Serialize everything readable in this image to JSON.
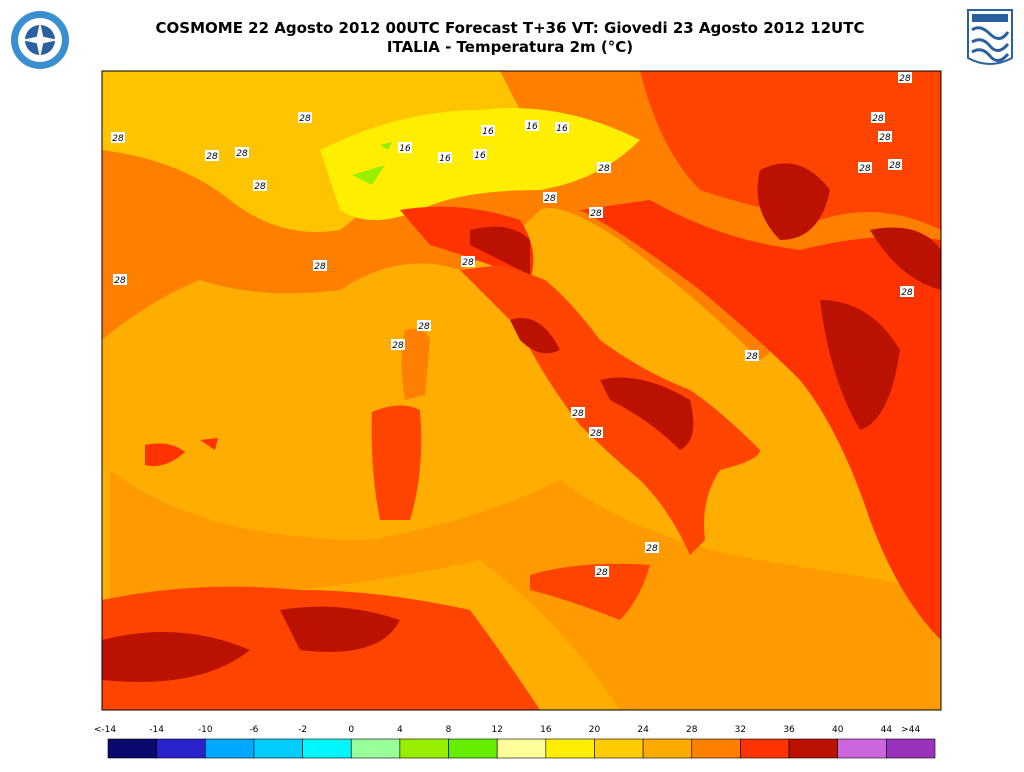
{
  "header": {
    "title": "COSMOME 22 Agosto 2012 00UTC Forecast T+36 VT: Giovedi 23 Agosto 2012 12UTC",
    "subtitle": "ITALIA - Temperatura 2m (°C)"
  },
  "contour_labels": [
    "28",
    "28",
    "28",
    "28",
    "28",
    "28",
    "16",
    "16",
    "16",
    "16",
    "16",
    "16",
    "28",
    "28",
    "28",
    "28",
    "28",
    "28",
    "28",
    "28",
    "28",
    "28",
    "28",
    "28",
    "28",
    "28",
    "28",
    "28",
    "28",
    "28"
  ],
  "legend": {
    "labels": [
      "<-14",
      "-14",
      "-10",
      "-6",
      "-2",
      "0",
      "4",
      "8",
      "12",
      "16",
      "20",
      "24",
      "28",
      "32",
      "36",
      "40",
      "44",
      ">44"
    ],
    "colors": [
      "#0a0a6e",
      "#2a23cc",
      "#00a8ff",
      "#00ccff",
      "#00f6ff",
      "#99ff99",
      "#99ee00",
      "#66ee00",
      "#ffff99",
      "#ffee00",
      "#ffcc00",
      "#ffaa00",
      "#ff8000",
      "#ff3300",
      "#bb1100",
      "#cc66dd",
      "#9933bb"
    ]
  }
}
